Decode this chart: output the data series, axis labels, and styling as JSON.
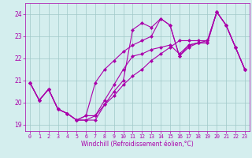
{
  "xlabel": "Windchill (Refroidissement éolien,°C)",
  "xlim": [
    -0.5,
    23.5
  ],
  "ylim": [
    18.7,
    24.5
  ],
  "yticks": [
    19,
    20,
    21,
    22,
    23,
    24
  ],
  "xticks": [
    0,
    1,
    2,
    3,
    4,
    5,
    6,
    7,
    8,
    9,
    10,
    11,
    12,
    13,
    14,
    15,
    16,
    17,
    18,
    19,
    20,
    21,
    22,
    23
  ],
  "bg_color": "#d4eeee",
  "grid_color": "#a0c8c8",
  "line_color": "#aa00aa",
  "lines": [
    {
      "x": [
        0,
        1,
        2,
        3,
        4,
        5,
        6,
        7,
        8,
        9,
        10,
        11,
        12,
        13,
        14,
        15,
        16,
        17,
        18,
        19,
        20,
        21,
        22,
        23
      ],
      "y": [
        20.9,
        20.1,
        20.6,
        19.7,
        19.5,
        19.2,
        19.2,
        19.2,
        19.9,
        20.5,
        21.0,
        23.3,
        23.6,
        23.4,
        23.8,
        23.5,
        22.1,
        22.6,
        22.7,
        22.7,
        24.1,
        23.5,
        22.5,
        21.5
      ],
      "markers": [
        0,
        1,
        2,
        3,
        4,
        5,
        6,
        7,
        8,
        10,
        11,
        12,
        13,
        14,
        15,
        16,
        17,
        18,
        19,
        20,
        21,
        22,
        23
      ]
    },
    {
      "x": [
        0,
        1,
        2,
        3,
        4,
        5,
        6,
        7,
        8,
        9,
        10,
        11,
        12,
        13,
        14,
        15,
        16,
        17,
        18,
        19,
        20,
        21,
        22,
        23
      ],
      "y": [
        20.9,
        20.1,
        20.6,
        19.7,
        19.5,
        19.2,
        19.4,
        20.9,
        21.5,
        21.9,
        22.3,
        22.6,
        22.8,
        23.0,
        23.8,
        23.5,
        22.1,
        22.5,
        22.7,
        22.8,
        24.1,
        23.5,
        22.5,
        21.5
      ],
      "markers": [
        0,
        1,
        2,
        3,
        4,
        5,
        6,
        7,
        8,
        9,
        10,
        11,
        12,
        13,
        14,
        15,
        16,
        17,
        18,
        19,
        20,
        21,
        22,
        23
      ]
    },
    {
      "x": [
        0,
        1,
        2,
        3,
        4,
        5,
        6,
        7,
        8,
        9,
        10,
        11,
        12,
        13,
        14,
        15,
        16,
        17,
        18,
        19,
        20,
        21,
        22,
        23
      ],
      "y": [
        20.9,
        20.1,
        20.6,
        19.7,
        19.5,
        19.2,
        19.4,
        19.4,
        20.1,
        20.8,
        21.5,
        22.1,
        22.2,
        22.4,
        22.5,
        22.6,
        22.2,
        22.6,
        22.7,
        22.7,
        24.1,
        23.5,
        22.5,
        21.5
      ],
      "markers": [
        0,
        1,
        2,
        3,
        4,
        5,
        6,
        7,
        8,
        9,
        10,
        11,
        12,
        13,
        14,
        15,
        16,
        17,
        18,
        19,
        20,
        21,
        22,
        23
      ]
    },
    {
      "x": [
        0,
        1,
        2,
        3,
        4,
        5,
        6,
        7,
        8,
        9,
        10,
        11,
        12,
        13,
        14,
        15,
        16,
        17,
        18,
        19,
        20,
        21,
        22,
        23
      ],
      "y": [
        20.9,
        20.1,
        20.6,
        19.7,
        19.5,
        19.2,
        19.2,
        19.4,
        19.9,
        20.3,
        20.8,
        21.2,
        21.5,
        21.9,
        22.2,
        22.5,
        22.8,
        22.8,
        22.8,
        22.8,
        24.1,
        23.5,
        22.5,
        21.5
      ],
      "markers": [
        0,
        1,
        2,
        3,
        4,
        5,
        6,
        7,
        8,
        9,
        10,
        11,
        12,
        13,
        14,
        15,
        16,
        17,
        18,
        19,
        20,
        21,
        22,
        23
      ]
    }
  ]
}
